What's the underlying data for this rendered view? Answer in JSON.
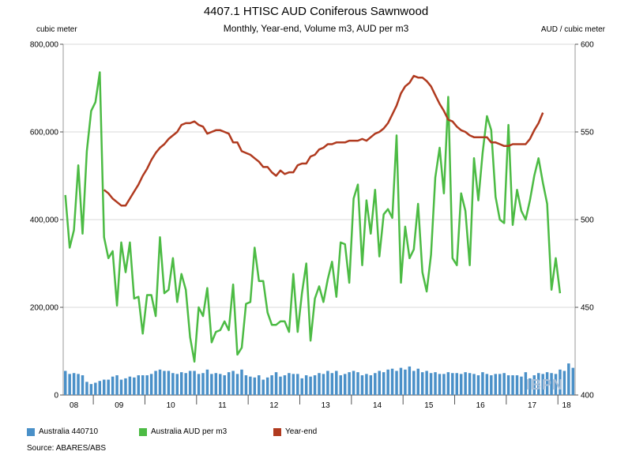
{
  "chart_data": {
    "type": "bar+line",
    "title": "4407.1 HTISC AUD Coniferous Sawnwood",
    "subtitle": "Monthly, Year-end, Volume m3, AUD per m3",
    "y_left_label": "cubic meter",
    "y_right_label": "AUD / cubic meter",
    "y_left_range": [
      0,
      800000
    ],
    "y_right_range": [
      400,
      600
    ],
    "y_left_ticks": [
      "0",
      "200,000",
      "400,000",
      "600,000",
      "800,000"
    ],
    "y_right_ticks": [
      "400",
      "450",
      "500",
      "550",
      "600"
    ],
    "x_ticks": [
      "08",
      "09",
      "10",
      "11",
      "12",
      "13",
      "14",
      "15",
      "16",
      "17",
      "18"
    ],
    "x_start": "2008-06",
    "series": [
      {
        "name": "Australia 440710",
        "kind": "bar",
        "axis": "left",
        "color": "#4a90c8",
        "values": [
          55000,
          48000,
          50000,
          48000,
          45000,
          30000,
          25000,
          28000,
          32000,
          35000,
          35000,
          42000,
          45000,
          35000,
          38000,
          42000,
          40000,
          45000,
          45000,
          45000,
          48000,
          55000,
          58000,
          55000,
          55000,
          50000,
          48000,
          52000,
          50000,
          55000,
          55000,
          48000,
          50000,
          58000,
          48000,
          50000,
          48000,
          45000,
          52000,
          55000,
          48000,
          58000,
          45000,
          42000,
          40000,
          45000,
          35000,
          40000,
          45000,
          52000,
          42000,
          45000,
          50000,
          48000,
          48000,
          38000,
          45000,
          42000,
          45000,
          50000,
          48000,
          55000,
          50000,
          55000,
          45000,
          48000,
          52000,
          55000,
          52000,
          45000,
          48000,
          45000,
          50000,
          55000,
          52000,
          58000,
          60000,
          55000,
          62000,
          58000,
          65000,
          55000,
          60000,
          52000,
          55000,
          50000,
          52000,
          48000,
          48000,
          52000,
          50000,
          50000,
          48000,
          52000,
          50000,
          48000,
          45000,
          52000,
          48000,
          45000,
          48000,
          48000,
          50000,
          45000,
          45000,
          45000,
          42000,
          52000,
          38000,
          45000,
          50000,
          48000,
          52000,
          50000,
          48000,
          58000,
          55000,
          72000,
          62000
        ]
      },
      {
        "name": "Australia AUD per m3",
        "kind": "line",
        "axis": "right",
        "color": "#4cbb44",
        "values": [
          514,
          484,
          494,
          531,
          492,
          539,
          562,
          567,
          584,
          490,
          478,
          482,
          451,
          487,
          470,
          487,
          455,
          456,
          435,
          457,
          457,
          445,
          490,
          458,
          460,
          478,
          453,
          469,
          460,
          433,
          419,
          450,
          445,
          461,
          430,
          436,
          437,
          442,
          437,
          463,
          423,
          427,
          452,
          453,
          484,
          465,
          465,
          447,
          440,
          440,
          442,
          442,
          436,
          469,
          436,
          458,
          475,
          431,
          455,
          462,
          453,
          466,
          476,
          456,
          487,
          486,
          464,
          512,
          520,
          474,
          511,
          492,
          517,
          479,
          503,
          506,
          501,
          548,
          464,
          496,
          478,
          483,
          509,
          470,
          459,
          480,
          524,
          541,
          515,
          570,
          478,
          474,
          515,
          505,
          474,
          535,
          511,
          538,
          559,
          551,
          513,
          500,
          498,
          554,
          497,
          517,
          505,
          500,
          511,
          525,
          535,
          521,
          509,
          460,
          478,
          458
        ]
      },
      {
        "name": "Year-end",
        "kind": "line",
        "axis": "right",
        "color": "#b03a1f",
        "start_index": 9,
        "values": [
          517,
          515,
          512,
          510,
          508,
          508,
          512,
          516,
          520,
          525,
          529,
          534,
          538,
          541,
          543,
          546,
          548,
          550,
          554,
          555,
          555,
          556,
          554,
          553,
          549,
          550,
          551,
          551,
          550,
          549,
          544,
          544,
          539,
          538,
          537,
          535,
          533,
          530,
          530,
          527,
          525,
          528,
          526,
          527,
          527,
          531,
          532,
          532,
          536,
          537,
          540,
          541,
          543,
          543,
          544,
          544,
          544,
          545,
          545,
          545,
          546,
          545,
          547,
          549,
          550,
          552,
          555,
          560,
          565,
          572,
          576,
          578,
          582,
          581,
          581,
          579,
          576,
          571,
          566,
          562,
          557,
          556,
          553,
          551,
          550,
          548,
          547,
          547,
          547,
          547,
          544,
          544,
          543,
          542,
          542,
          543,
          543,
          543,
          543,
          546,
          551,
          555,
          561
        ]
      }
    ]
  },
  "legend": {
    "bar": "Australia 440710",
    "green": "Australia AUD per m3",
    "red": "Year-end"
  },
  "source": "Source: ABARES/ABS",
  "watermark": "IBPN",
  "colors": {
    "bar": "#4a90c8",
    "green": "#4cbb44",
    "red": "#b03a1f"
  }
}
